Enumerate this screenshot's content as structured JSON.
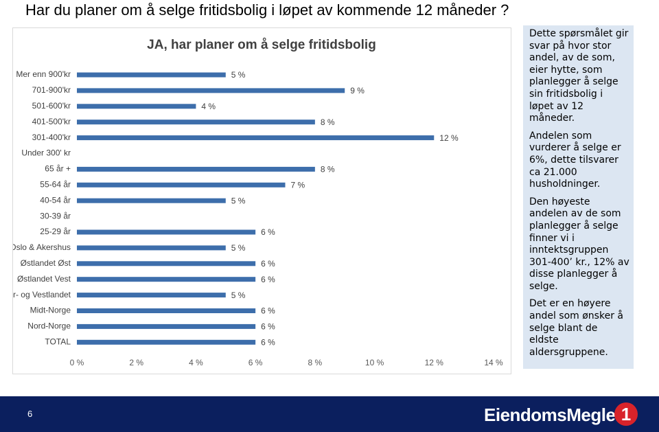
{
  "slide_title": "Har du planer om å selge fritidsbolig i løpet av kommende 12 måneder ?",
  "chart_data": {
    "type": "bar",
    "orientation": "horizontal",
    "title": "JA, har planer om å selge fritidsbolig",
    "categories": [
      "Mer enn 900'kr",
      "701-900'kr",
      "501-600'kr",
      "401-500'kr",
      "301-400'kr",
      "Under 300' kr",
      "65 år +",
      "55-64 år",
      "40-54 år",
      "30-39 år",
      "25-29 år",
      "Oslo & Akershus",
      "Østlandet Øst",
      "Østlandet Vest",
      "Sør- og Vestlandet",
      "Midt-Norge",
      "Nord-Norge",
      "TOTAL"
    ],
    "values": [
      5,
      9,
      4,
      8,
      12,
      null,
      8,
      7,
      5,
      null,
      6,
      5,
      6,
      6,
      5,
      6,
      6,
      6
    ],
    "value_labels": [
      "5 %",
      "9 %",
      "4 %",
      "8 %",
      "12 %",
      null,
      "8 %",
      "7 %",
      "5 %",
      null,
      "6 %",
      "5 %",
      "6 %",
      "6 %",
      "5 %",
      "6 %",
      "6 %",
      "6 %"
    ],
    "color": "#3d6eab",
    "xlim": [
      0,
      14
    ],
    "xticks": [
      {
        "value": 0,
        "label": "0 %"
      },
      {
        "value": 2,
        "label": "2 %"
      },
      {
        "value": 4,
        "label": "4 %"
      },
      {
        "value": 6,
        "label": "6 %"
      },
      {
        "value": 8,
        "label": "8 %"
      },
      {
        "value": 10,
        "label": "10 %"
      },
      {
        "value": 12,
        "label": "12 %"
      },
      {
        "value": 14,
        "label": "14 %"
      }
    ],
    "grid": false
  },
  "text_box": [
    "Dette spørsmålet gir svar på hvor stor andel, av de som, eier hytte, som planlegger å selge sin fritidsbolig i løpet av 12 måneder.",
    "Andelen som vurderer å selge er 6%, dette tilsvarer ca 21.000 husholdninger.",
    "Den høyeste andelen av de som planlegger å selge finner vi i inntektsgruppen 301-400’ kr., 12% av disse planlegger å selge.",
    "Det er en høyere andel som ønsker å selge blant de eldste aldersgruppene."
  ],
  "footer": {
    "page_number": "6",
    "logo": "EiendomsMegler",
    "logo_number": "1"
  }
}
